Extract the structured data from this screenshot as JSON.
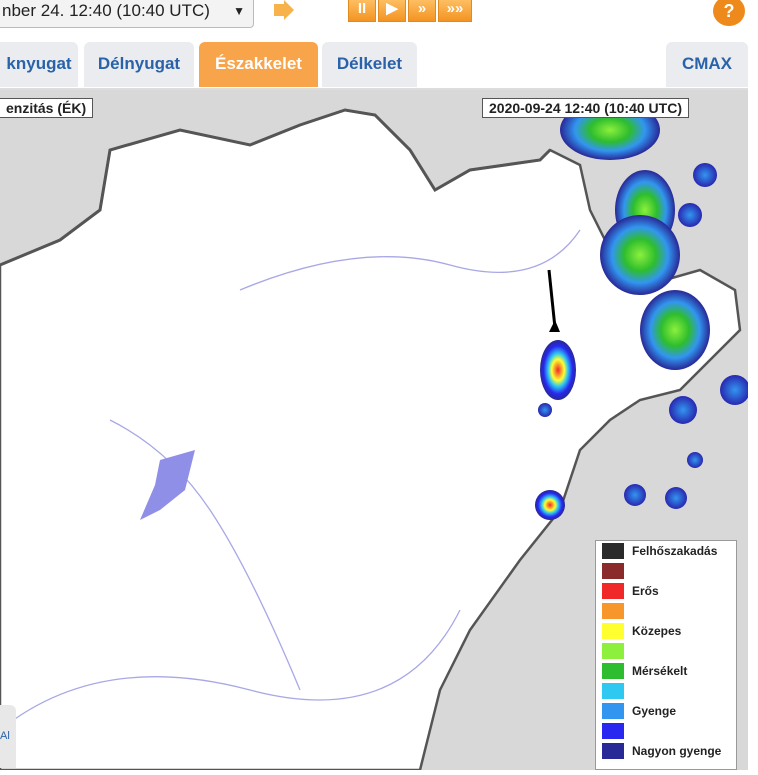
{
  "toolbar": {
    "datetime_select": "nber 24. 12:40 (10:40  UTC)",
    "dropdown_arrow": "▼",
    "pause": "II",
    "play": "▶",
    "fast": "»",
    "faster": "»»",
    "help": "?"
  },
  "tabs": [
    {
      "label": "knyugat",
      "active": false
    },
    {
      "label": "Délnyugat",
      "active": false
    },
    {
      "label": "Északkelet",
      "active": true
    },
    {
      "label": "Délkelet",
      "active": false
    },
    {
      "label": "CMAX",
      "active": false
    }
  ],
  "map": {
    "product_label": "enzitás (ÉK)",
    "timestamp": "2020-09-24 12:40 (10:40 UTC)",
    "side_tab": "Al"
  },
  "legend": [
    {
      "label": "Felhőszakadás",
      "color": "#2b2b2b"
    },
    {
      "label": "",
      "color": "#8b2a2a"
    },
    {
      "label": "Erős",
      "color": "#f02828"
    },
    {
      "label": "",
      "color": "#f7962a"
    },
    {
      "label": "Közepes",
      "color": "#ffff30"
    },
    {
      "label": "",
      "color": "#8cf03c"
    },
    {
      "label": "Mérsékelt",
      "color": "#2ebd2e"
    },
    {
      "label": "",
      "color": "#2ec8f0"
    },
    {
      "label": "Gyenge",
      "color": "#3296f0"
    },
    {
      "label": "",
      "color": "#2828f0"
    },
    {
      "label": "Nagyon gyenge",
      "color": "#282896"
    }
  ]
}
